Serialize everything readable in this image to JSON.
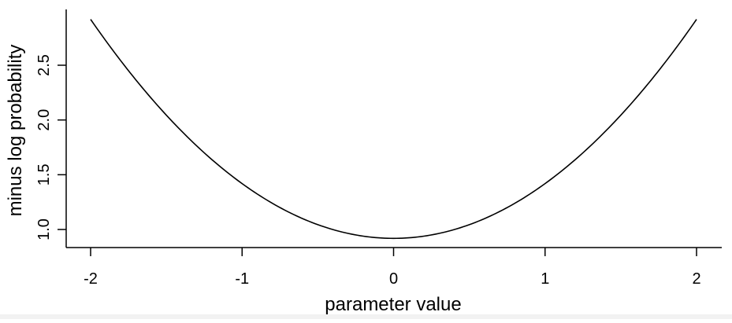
{
  "chart_data": {
    "type": "line",
    "title": "",
    "xlabel": "parameter value",
    "ylabel": "minus log probability",
    "xlim": [
      -2.1,
      2.1
    ],
    "ylim": [
      0.84,
      3.0
    ],
    "xticks": [
      -2,
      -1,
      0,
      1,
      2
    ],
    "xtick_labels": [
      "-2",
      "-1",
      "0",
      "1",
      "2"
    ],
    "yticks": [
      1.0,
      1.5,
      2.0,
      2.5
    ],
    "ytick_labels": [
      "1.0",
      "1.5",
      "2.0",
      "2.5"
    ],
    "grid": false,
    "legend": "none",
    "series": [
      {
        "color": "#000000",
        "function": "0.5*x^2 + 0.9189",
        "x": [
          -2.0,
          -1.75,
          -1.5,
          -1.25,
          -1.0,
          -0.75,
          -0.5,
          -0.25,
          0.0,
          0.25,
          0.5,
          0.75,
          1.0,
          1.25,
          1.5,
          1.75,
          2.0
        ],
        "y": [
          2.919,
          2.45,
          2.044,
          1.7,
          1.419,
          1.2,
          1.044,
          0.95,
          0.919,
          0.95,
          1.044,
          1.2,
          1.419,
          1.7,
          2.044,
          2.45,
          2.919
        ]
      }
    ]
  }
}
